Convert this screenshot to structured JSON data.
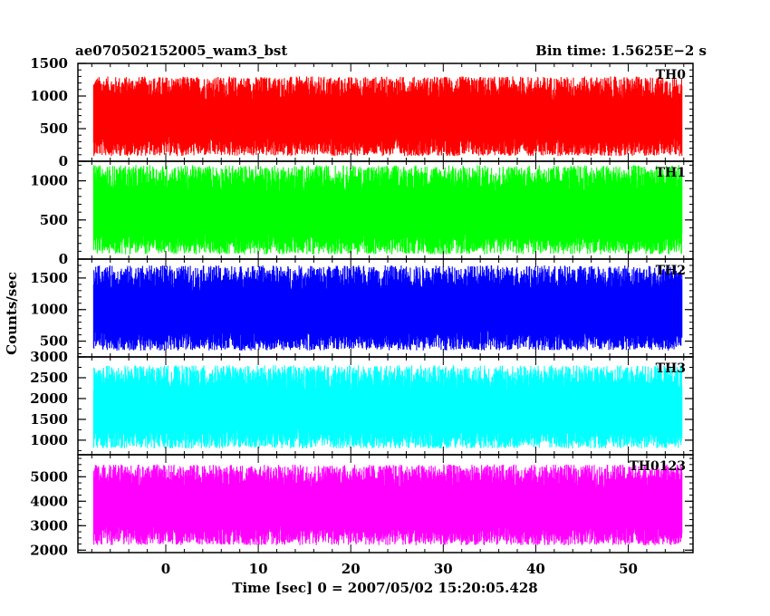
{
  "header": {
    "title": "ae070502152005_wam3_bst",
    "bin_time": "Bin time: 1.5625E−2 s"
  },
  "chart_data": {
    "type": "line",
    "xlabel": "Time [sec] 0 = 2007/05/02 15:20:05.428",
    "ylabel": "Counts/sec",
    "xlim": [
      -9.5,
      57
    ],
    "data_x_range": [
      -7.8,
      55.8
    ],
    "xticks": [
      0,
      10,
      20,
      30,
      40,
      50
    ],
    "x_tick_labels": [
      "0",
      "10",
      "20",
      "30",
      "40",
      "50"
    ],
    "panels": [
      {
        "name": "TH0",
        "color": "#ff0000",
        "ylim": [
          0,
          1500
        ],
        "yticks": [
          0,
          500,
          1000,
          1500
        ],
        "y_tick_labels": [
          "0",
          "500",
          "1000",
          "1500"
        ],
        "mean": 620,
        "typical_min": 80,
        "typical_max": 1300
      },
      {
        "name": "TH1",
        "color": "#00ff00",
        "ylim": [
          0,
          1250
        ],
        "yticks": [
          0,
          500,
          1000
        ],
        "y_tick_labels": [
          "0",
          "500",
          "1000"
        ],
        "mean": 560,
        "typical_min": 60,
        "typical_max": 1200
      },
      {
        "name": "TH2",
        "color": "#0000ff",
        "ylim": [
          250,
          1800
        ],
        "yticks": [
          500,
          1000,
          1500
        ],
        "y_tick_labels": [
          "500",
          "1000",
          "1500"
        ],
        "mean": 950,
        "typical_min": 350,
        "typical_max": 1700
      },
      {
        "name": "TH3",
        "color": "#00ffff",
        "ylim": [
          650,
          3000
        ],
        "yticks": [
          1000,
          1500,
          2000,
          2500,
          3000
        ],
        "y_tick_labels": [
          "1000",
          "1500",
          "2000",
          "2500",
          "3000"
        ],
        "mean": 1650,
        "typical_min": 800,
        "typical_max": 2800
      },
      {
        "name": "TH0123",
        "color": "#ff00ff",
        "ylim": [
          1900,
          5900
        ],
        "yticks": [
          2000,
          3000,
          4000,
          5000
        ],
        "y_tick_labels": [
          "2000",
          "3000",
          "4000",
          "5000"
        ],
        "mean": 3700,
        "typical_min": 2200,
        "typical_max": 5500
      }
    ]
  }
}
